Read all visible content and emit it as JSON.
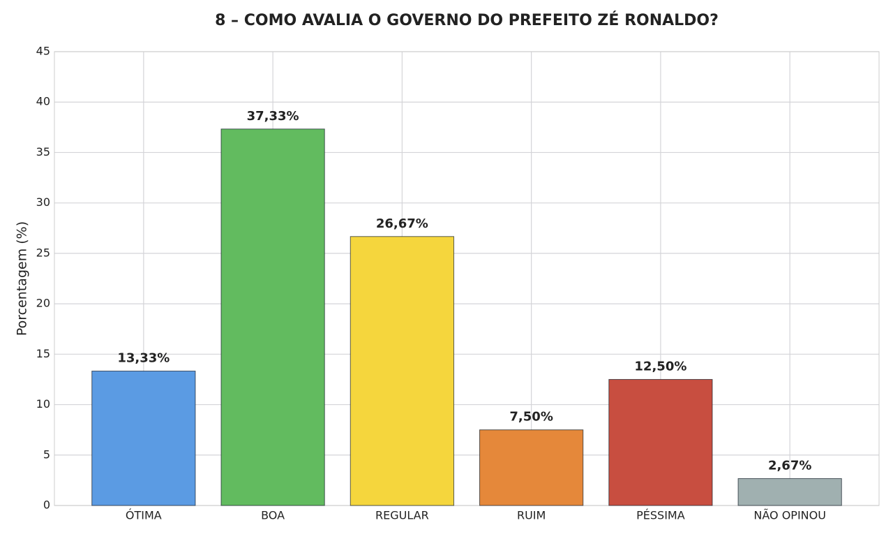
{
  "chart_data": {
    "type": "bar",
    "title": "8 – COMO AVALIA O GOVERNO DO PREFEITO ZÉ RONALDO?",
    "y_label": "Porcentagem (%)",
    "categories": [
      "ÓTIMA",
      "BOA",
      "REGULAR",
      "RUIM",
      "PÉSSIMA",
      "NÃO OPINOU"
    ],
    "values": [
      13.33,
      37.33,
      26.67,
      7.5,
      12.5,
      2.67
    ],
    "value_labels": [
      "13,33%",
      "37,33%",
      "26,67%",
      "7,50%",
      "12,50%",
      "2,67%"
    ],
    "colors": [
      "#5b9be3",
      "#62bb5f",
      "#f5d63d",
      "#e5883a",
      "#c84e40",
      "#a0b0b0"
    ],
    "ylim": [
      0,
      45
    ],
    "yticks": [
      0,
      5,
      10,
      15,
      20,
      25,
      30,
      35,
      40,
      45
    ],
    "grid": true
  }
}
